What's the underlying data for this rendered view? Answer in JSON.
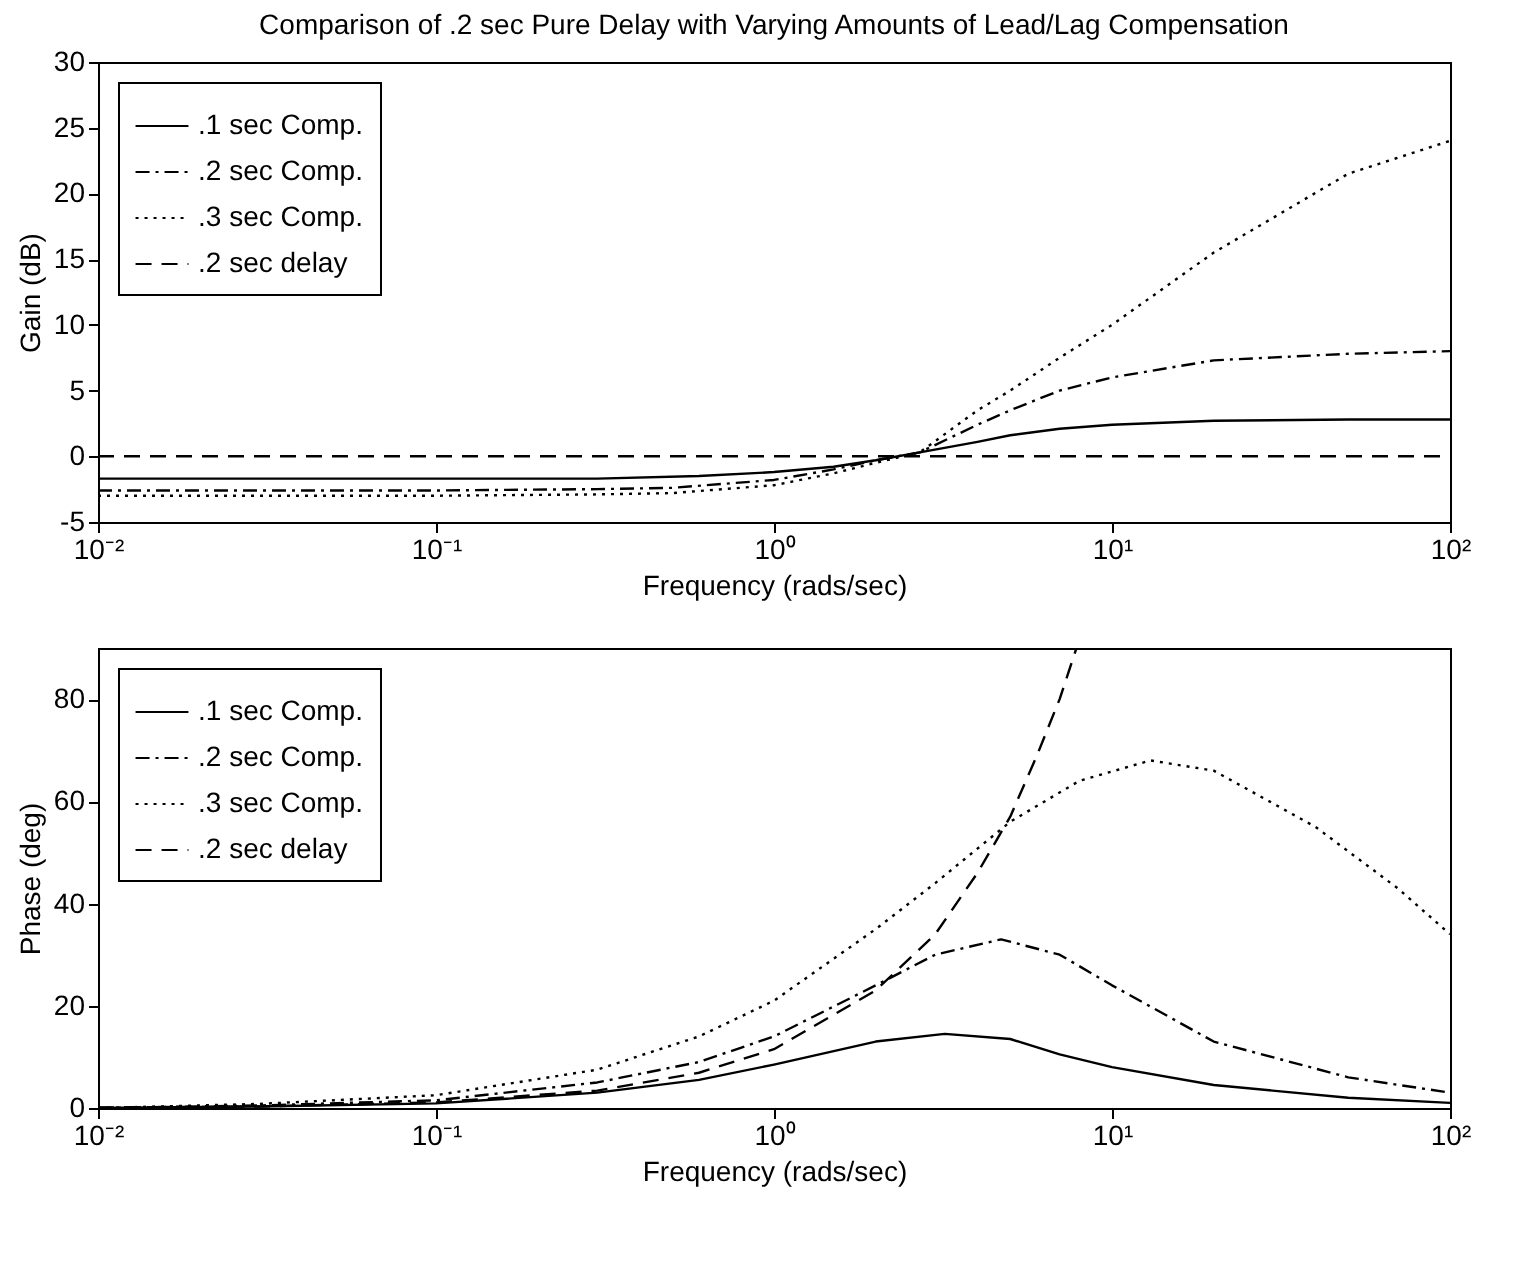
{
  "chart_data": [
    {
      "type": "line",
      "title": "Comparison of .2 sec Pure Delay with Varying Amounts of Lead/Lag Compensation",
      "xlabel": "Frequency (rads/sec)",
      "ylabel": "Gain (dB)",
      "log": "x",
      "grid": false,
      "legend": "top left",
      "xlim": [
        0.01,
        100
      ],
      "xticks": [
        {
          "value": 0.01,
          "label": "10⁻²"
        },
        {
          "value": 0.1,
          "label": "10⁻¹"
        },
        {
          "value": 1,
          "label": "10⁰"
        },
        {
          "value": 10,
          "label": "10¹"
        },
        {
          "value": 100,
          "label": "10²"
        }
      ],
      "ylim": [
        -5,
        30
      ],
      "yticks": [
        -5,
        0,
        5,
        10,
        15,
        20,
        25,
        30
      ],
      "series": [
        {
          "name": ".1 sec Comp.",
          "color": "#000000",
          "line_style": "solid",
          "x": [
            0.01,
            0.1,
            0.3,
            0.6,
            1,
            1.5,
            2,
            2.7,
            4,
            5,
            7,
            10,
            20,
            50,
            100
          ],
          "values": [
            -1.7,
            -1.7,
            -1.7,
            -1.5,
            -1.2,
            -0.8,
            -0.3,
            0.3,
            1.1,
            1.6,
            2.1,
            2.4,
            2.7,
            2.8,
            2.8
          ]
        },
        {
          "name": ".2 sec Comp.",
          "color": "#000000",
          "line_style": "dashdot",
          "x": [
            0.01,
            0.1,
            0.3,
            0.5,
            1,
            1.5,
            2,
            2.7,
            4,
            5,
            7,
            10,
            20,
            50,
            100
          ],
          "values": [
            -2.6,
            -2.6,
            -2.5,
            -2.4,
            -1.8,
            -1.0,
            -0.3,
            0.3,
            2.4,
            3.5,
            5.0,
            6.0,
            7.3,
            7.8,
            8.0
          ]
        },
        {
          "name": ".3 sec Comp.",
          "color": "#000000",
          "line_style": "dotted",
          "x": [
            0.01,
            0.1,
            0.3,
            0.5,
            1,
            1.5,
            2,
            2.7,
            4,
            5,
            7,
            10,
            20,
            50,
            100
          ],
          "values": [
            -3.0,
            -3.0,
            -2.9,
            -2.8,
            -2.2,
            -1.3,
            -0.5,
            0.3,
            3.5,
            5.0,
            7.5,
            10.0,
            15.5,
            21.5,
            24.0
          ]
        },
        {
          "name": ".2 sec delay",
          "color": "#000000",
          "line_style": "dashed",
          "x": [
            0.01,
            100
          ],
          "values": [
            0,
            0
          ]
        }
      ]
    },
    {
      "type": "line",
      "xlabel": "Frequency (rads/sec)",
      "ylabel": "Phase (deg)",
      "log": "x",
      "grid": false,
      "legend": "top left",
      "xlim": [
        0.01,
        100
      ],
      "xticks": [
        {
          "value": 0.01,
          "label": "10⁻²"
        },
        {
          "value": 0.1,
          "label": "10⁻¹"
        },
        {
          "value": 1,
          "label": "10⁰"
        },
        {
          "value": 10,
          "label": "10¹"
        },
        {
          "value": 100,
          "label": "10²"
        }
      ],
      "ylim": [
        0,
        90
      ],
      "yticks": [
        0,
        20,
        40,
        60,
        80
      ],
      "series": [
        {
          "name": ".1 sec Comp.",
          "color": "#000000",
          "line_style": "solid",
          "x": [
            0.01,
            0.03,
            0.1,
            0.3,
            0.6,
            1,
            2,
            3.2,
            5,
            7,
            10,
            20,
            50,
            100
          ],
          "values": [
            0,
            0.3,
            0.9,
            3,
            5.5,
            8.5,
            13,
            14.5,
            13.5,
            10.5,
            8,
            4.5,
            2,
            1
          ]
        },
        {
          "name": ".2 sec Comp.",
          "color": "#000000",
          "line_style": "dashdot",
          "x": [
            0.01,
            0.03,
            0.1,
            0.3,
            0.6,
            1,
            2,
            3,
            4.7,
            7,
            10,
            20,
            50,
            100
          ],
          "values": [
            0,
            0.5,
            1.5,
            5,
            9,
            14,
            24,
            30,
            33,
            30,
            24,
            13,
            6,
            3
          ]
        },
        {
          "name": ".3 sec Comp.",
          "color": "#000000",
          "line_style": "dotted",
          "x": [
            0.01,
            0.03,
            0.1,
            0.3,
            0.6,
            1,
            2,
            3,
            5,
            8,
            13,
            20,
            40,
            70,
            100
          ],
          "values": [
            0,
            0.8,
            2.5,
            7.5,
            14,
            21,
            35,
            44,
            56,
            64,
            68,
            66,
            55,
            43,
            34
          ]
        },
        {
          "name": ".2 sec delay",
          "color": "#000000",
          "line_style": "dashed",
          "x": [
            0.01,
            0.03,
            0.1,
            0.3,
            0.6,
            1,
            2,
            3,
            4,
            5,
            6,
            7,
            7.85
          ],
          "values": [
            0.1,
            0.3,
            1.1,
            3.4,
            6.9,
            11.5,
            23,
            34,
            46,
            57,
            69,
            80,
            90
          ]
        }
      ]
    }
  ]
}
